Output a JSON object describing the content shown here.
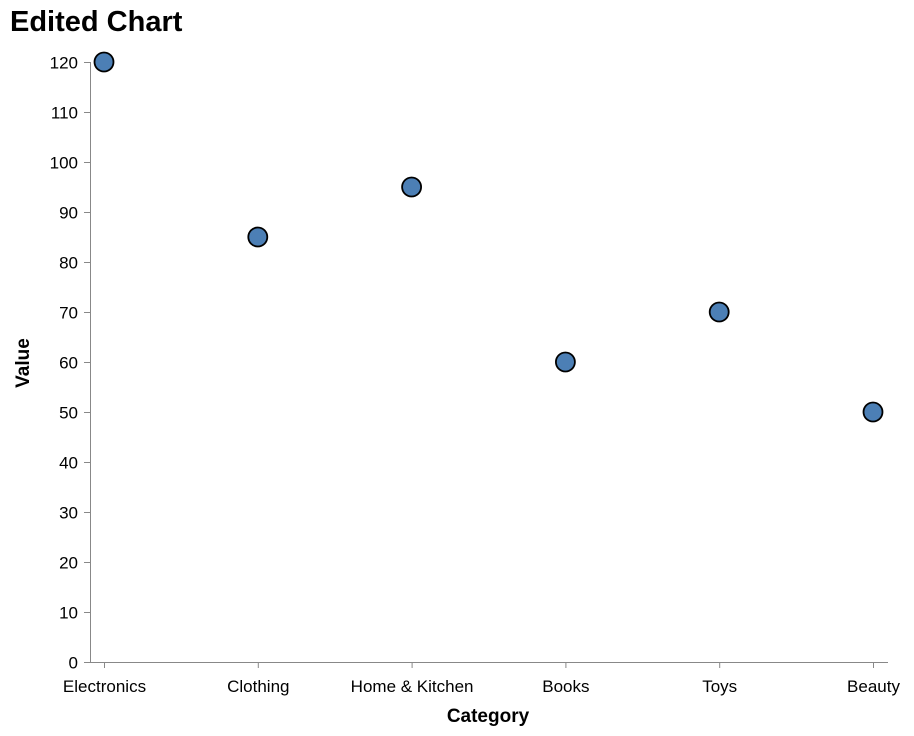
{
  "chart_data": {
    "type": "scatter",
    "title": "Edited Chart",
    "xlabel": "Category",
    "ylabel": "Value",
    "categories": [
      "Electronics",
      "Clothing",
      "Home & Kitchen",
      "Books",
      "Toys",
      "Beauty"
    ],
    "values": [
      120,
      85,
      95,
      60,
      70,
      50
    ],
    "ylim": [
      0,
      120
    ],
    "yticks": [
      "0",
      "10",
      "20",
      "30",
      "40",
      "50",
      "60",
      "70",
      "80",
      "90",
      "100",
      "110",
      "120"
    ],
    "grid": false,
    "legend": "none",
    "colors": {
      "point_fill": "#4c7fb5",
      "point_stroke": "#000000",
      "axis": "#888888"
    }
  }
}
